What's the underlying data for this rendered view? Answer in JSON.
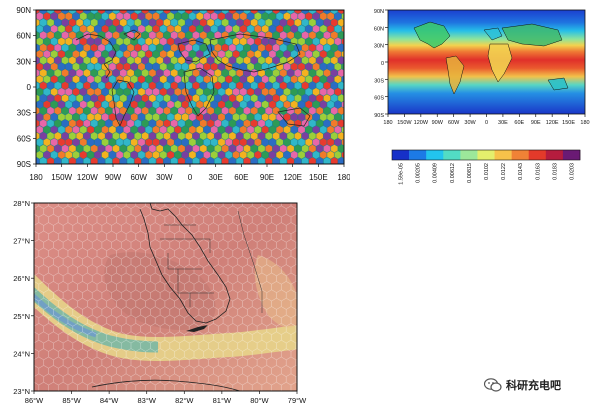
{
  "panel_a": {
    "lat_labels": [
      "90N",
      "60N",
      "30N",
      "0",
      "30S",
      "60S",
      "90S"
    ],
    "lat_values": [
      90,
      60,
      30,
      0,
      -30,
      -60,
      -90
    ],
    "lon_labels": [
      "180",
      "150W",
      "120W",
      "90W",
      "60W",
      "30W",
      "0",
      "30E",
      "60E",
      "90E",
      "120E",
      "150E",
      "180"
    ],
    "lon_values": [
      -180,
      -150,
      -120,
      -90,
      -60,
      -30,
      0,
      30,
      60,
      90,
      120,
      150,
      180
    ],
    "palette": [
      "#e83a2e",
      "#f4b21f",
      "#2d9b55",
      "#2b6cc4",
      "#7a3fa0",
      "#e866a8",
      "#31b7c9",
      "#9bcf3a",
      "#f27a2a"
    ]
  },
  "panel_b": {
    "lat_labels": [
      "90N",
      "60N",
      "30N",
      "0",
      "30S",
      "60S",
      "90S"
    ],
    "lat_values": [
      90,
      60,
      30,
      0,
      -30,
      -60,
      -90
    ],
    "lon_labels": [
      "180",
      "150W",
      "120W",
      "90W",
      "60W",
      "30W",
      "0",
      "30E",
      "60E",
      "90E",
      "120E",
      "150E",
      "180"
    ],
    "lon_values": [
      -180,
      -150,
      -120,
      -90,
      -60,
      -30,
      0,
      30,
      60,
      90,
      120,
      150,
      180
    ],
    "colorbar_labels": [
      "1.59e-05",
      "0.00205",
      "0.00409",
      "0.00612",
      "0.00815",
      "0.0102",
      "0.0122",
      "0.0143",
      "0.0163",
      "0.0183",
      "0.0203"
    ],
    "colorbar_colors": [
      "#1630c8",
      "#1c7ae6",
      "#22c4ee",
      "#52dcc4",
      "#9ce89a",
      "#e4ef6c",
      "#f7c24a",
      "#f08236",
      "#e33a2a",
      "#b51c3e",
      "#6a1a74"
    ]
  },
  "panel_c": {
    "lat_labels": [
      "28°N",
      "27°N",
      "26°N",
      "25°N",
      "24°N",
      "23°N"
    ],
    "lat_values": [
      28,
      27,
      26,
      25,
      24,
      23
    ],
    "lon_labels": [
      "86°W",
      "85°W",
      "84°W",
      "83°W",
      "82°W",
      "81°W",
      "80°W",
      "79°W"
    ],
    "lon_values": [
      -86,
      -85,
      -84,
      -83,
      -82,
      -81,
      -80,
      -79
    ]
  },
  "watermark": {
    "text": "科研充电吧",
    "icon": "wechat-logo-icon"
  }
}
